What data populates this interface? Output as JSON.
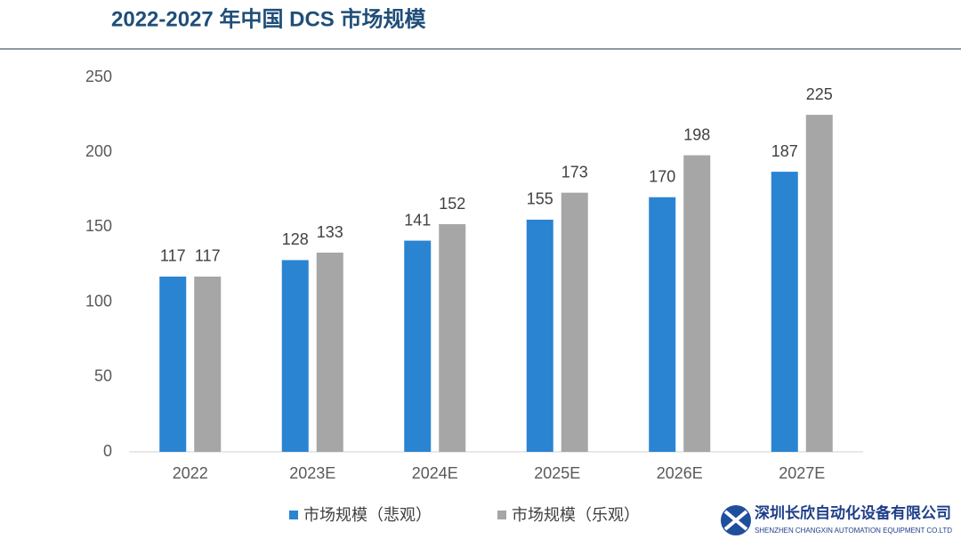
{
  "chart_data": {
    "type": "bar",
    "title": "2022-2027 年中国 DCS 市场规模",
    "categories": [
      "2022",
      "2023E",
      "2024E",
      "2025E",
      "2026E",
      "2027E"
    ],
    "series": [
      {
        "name": "市场规模（悲观）",
        "color": "#2a84d2",
        "values": [
          117,
          128,
          141,
          155,
          170,
          187
        ]
      },
      {
        "name": "市场规模（乐观）",
        "color": "#a6a6a6",
        "values": [
          117,
          133,
          152,
          173,
          198,
          225
        ]
      }
    ],
    "ylim": [
      0,
      250
    ],
    "yticks": [
      0,
      50,
      100,
      150,
      200,
      250
    ],
    "grid": false,
    "legend": "bottom"
  },
  "footer": {
    "company": "深圳长欣自动化设备有限公司",
    "company_en": "SHENZHEN CHANGXIN AUTOMATION EQUIPMENT CO.LTD"
  }
}
